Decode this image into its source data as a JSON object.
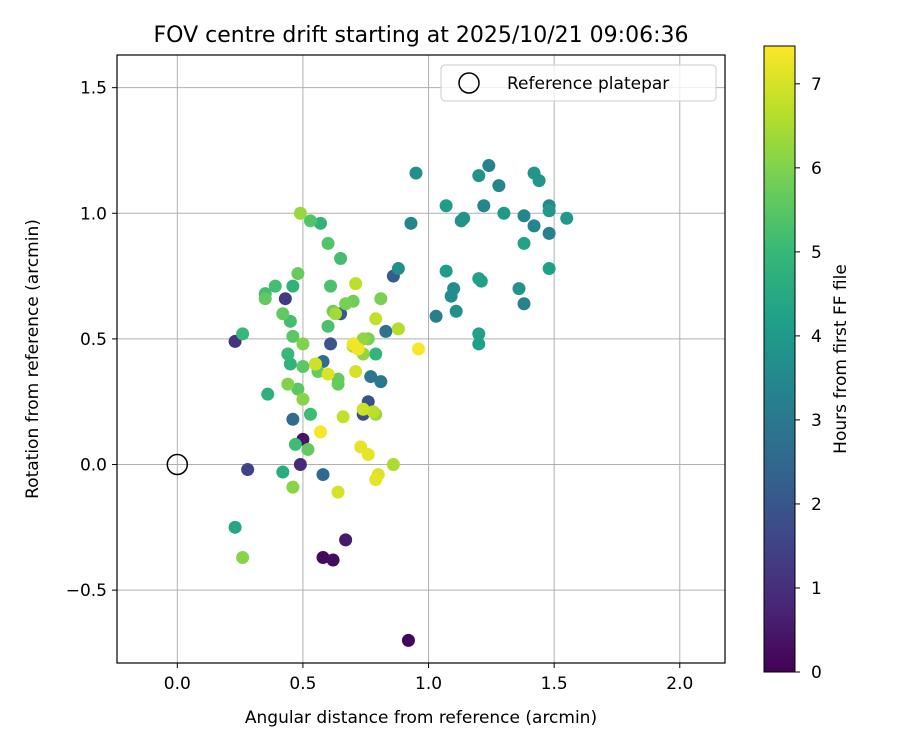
{
  "chart_data": {
    "type": "scatter",
    "title": "FOV centre drift starting at 2025/10/21 09:06:36",
    "xlabel": "Angular distance from reference (arcmin)",
    "ylabel": "Rotation from reference (arcmin)",
    "xlim": [
      -0.24,
      2.18
    ],
    "ylim": [
      -0.79,
      1.63
    ],
    "xticks": [
      0.0,
      0.5,
      1.0,
      1.5,
      2.0
    ],
    "xtick_labels": [
      "0.0",
      "0.5",
      "1.0",
      "1.5",
      "2.0"
    ],
    "yticks": [
      -0.5,
      0.0,
      0.5,
      1.0,
      1.5
    ],
    "ytick_labels": [
      "−0.5",
      "0.0",
      "0.5",
      "1.0",
      "1.5"
    ],
    "grid": true,
    "legend": {
      "position": "top-right",
      "label": "Reference platepar"
    },
    "reference_point": {
      "x": 0.0,
      "y": 0.0
    },
    "colorbar": {
      "label": "Hours from first FF file",
      "colormap": "viridis",
      "range": [
        0,
        7.45
      ],
      "ticks": [
        0,
        1,
        2,
        3,
        4,
        5,
        6,
        7
      ],
      "tick_labels": [
        "0",
        "1",
        "2",
        "3",
        "4",
        "5",
        "6",
        "7"
      ]
    },
    "points": [
      {
        "x": 0.92,
        "y": -0.7,
        "h": 0.1
      },
      {
        "x": 0.58,
        "y": -0.37,
        "h": 0.2
      },
      {
        "x": 0.62,
        "y": -0.38,
        "h": 0.25
      },
      {
        "x": 0.67,
        "y": -0.3,
        "h": 0.5
      },
      {
        "x": 0.5,
        "y": 0.1,
        "h": 0.4
      },
      {
        "x": 0.49,
        "y": 0.0,
        "h": 0.9
      },
      {
        "x": 0.23,
        "y": 0.49,
        "h": 1.1
      },
      {
        "x": 0.43,
        "y": 0.66,
        "h": 1.3
      },
      {
        "x": 0.28,
        "y": -0.02,
        "h": 1.5
      },
      {
        "x": 0.74,
        "y": 0.2,
        "h": 1.8
      },
      {
        "x": 0.76,
        "y": 0.25,
        "h": 1.9
      },
      {
        "x": 0.61,
        "y": 0.48,
        "h": 2.0
      },
      {
        "x": 0.65,
        "y": 0.6,
        "h": 2.1
      },
      {
        "x": 0.86,
        "y": 0.75,
        "h": 2.2
      },
      {
        "x": 0.58,
        "y": -0.04,
        "h": 2.5
      },
      {
        "x": 0.46,
        "y": 0.18,
        "h": 2.6
      },
      {
        "x": 0.58,
        "y": 0.41,
        "h": 2.6
      },
      {
        "x": 0.83,
        "y": 0.53,
        "h": 2.8
      },
      {
        "x": 0.77,
        "y": 0.35,
        "h": 2.9
      },
      {
        "x": 0.81,
        "y": 0.33,
        "h": 3.0
      },
      {
        "x": 1.03,
        "y": 0.59,
        "h": 3.2
      },
      {
        "x": 1.24,
        "y": 1.19,
        "h": 3.3
      },
      {
        "x": 1.38,
        "y": 0.99,
        "h": 3.4
      },
      {
        "x": 1.42,
        "y": 0.95,
        "h": 3.4
      },
      {
        "x": 1.48,
        "y": 0.92,
        "h": 3.3
      },
      {
        "x": 1.38,
        "y": 0.64,
        "h": 3.3
      },
      {
        "x": 0.93,
        "y": 0.96,
        "h": 3.4
      },
      {
        "x": 1.22,
        "y": 1.03,
        "h": 3.4
      },
      {
        "x": 1.28,
        "y": 1.11,
        "h": 3.4
      },
      {
        "x": 1.48,
        "y": 1.03,
        "h": 3.5
      },
      {
        "x": 0.95,
        "y": 1.16,
        "h": 3.7
      },
      {
        "x": 0.88,
        "y": 0.78,
        "h": 3.7
      },
      {
        "x": 1.1,
        "y": 0.7,
        "h": 3.6
      },
      {
        "x": 1.09,
        "y": 0.67,
        "h": 3.6
      },
      {
        "x": 1.11,
        "y": 0.61,
        "h": 3.7
      },
      {
        "x": 1.13,
        "y": 0.97,
        "h": 3.8
      },
      {
        "x": 1.14,
        "y": 0.98,
        "h": 3.8
      },
      {
        "x": 1.2,
        "y": 1.15,
        "h": 3.8
      },
      {
        "x": 1.42,
        "y": 1.16,
        "h": 3.9
      },
      {
        "x": 1.44,
        "y": 1.13,
        "h": 3.9
      },
      {
        "x": 1.36,
        "y": 0.7,
        "h": 3.8
      },
      {
        "x": 1.48,
        "y": 1.01,
        "h": 4.0
      },
      {
        "x": 1.55,
        "y": 0.98,
        "h": 4.0
      },
      {
        "x": 1.3,
        "y": 1.0,
        "h": 4.0
      },
      {
        "x": 1.07,
        "y": 1.03,
        "h": 4.1
      },
      {
        "x": 1.07,
        "y": 0.77,
        "h": 4.1
      },
      {
        "x": 1.21,
        "y": 0.73,
        "h": 4.2
      },
      {
        "x": 1.2,
        "y": 0.74,
        "h": 4.2
      },
      {
        "x": 1.2,
        "y": 0.52,
        "h": 4.2
      },
      {
        "x": 1.2,
        "y": 0.48,
        "h": 4.2
      },
      {
        "x": 1.38,
        "y": 0.88,
        "h": 4.3
      },
      {
        "x": 1.48,
        "y": 0.78,
        "h": 4.2
      },
      {
        "x": 0.23,
        "y": -0.25,
        "h": 4.4
      },
      {
        "x": 0.42,
        "y": -0.03,
        "h": 4.6
      },
      {
        "x": 0.36,
        "y": 0.28,
        "h": 4.7
      },
      {
        "x": 0.57,
        "y": 0.96,
        "h": 4.8
      },
      {
        "x": 0.45,
        "y": 0.4,
        "h": 4.8
      },
      {
        "x": 0.46,
        "y": 0.71,
        "h": 4.8
      },
      {
        "x": 0.79,
        "y": 0.44,
        "h": 4.9
      },
      {
        "x": 0.26,
        "y": 0.52,
        "h": 5.0
      },
      {
        "x": 0.44,
        "y": 0.44,
        "h": 5.0
      },
      {
        "x": 0.47,
        "y": 0.08,
        "h": 5.1
      },
      {
        "x": 0.53,
        "y": 0.2,
        "h": 5.1
      },
      {
        "x": 0.39,
        "y": 0.71,
        "h": 5.2
      },
      {
        "x": 0.35,
        "y": 0.68,
        "h": 5.2
      },
      {
        "x": 0.45,
        "y": 0.57,
        "h": 5.2
      },
      {
        "x": 0.65,
        "y": 0.82,
        "h": 5.2
      },
      {
        "x": 0.61,
        "y": 0.71,
        "h": 5.3
      },
      {
        "x": 0.6,
        "y": 0.55,
        "h": 5.3
      },
      {
        "x": 0.53,
        "y": 0.97,
        "h": 5.4
      },
      {
        "x": 0.6,
        "y": 0.88,
        "h": 5.4
      },
      {
        "x": 0.48,
        "y": 0.3,
        "h": 5.5
      },
      {
        "x": 0.46,
        "y": 0.51,
        "h": 5.5
      },
      {
        "x": 0.5,
        "y": 0.39,
        "h": 5.5
      },
      {
        "x": 0.52,
        "y": 0.06,
        "h": 5.6
      },
      {
        "x": 0.42,
        "y": 0.6,
        "h": 5.6
      },
      {
        "x": 0.35,
        "y": 0.66,
        "h": 5.6
      },
      {
        "x": 0.48,
        "y": 0.76,
        "h": 5.7
      },
      {
        "x": 0.56,
        "y": 0.37,
        "h": 5.7
      },
      {
        "x": 0.64,
        "y": 0.34,
        "h": 5.7
      },
      {
        "x": 0.64,
        "y": 0.32,
        "h": 5.7
      },
      {
        "x": 0.7,
        "y": 0.65,
        "h": 5.8
      },
      {
        "x": 0.62,
        "y": 0.61,
        "h": 5.8
      },
      {
        "x": 0.67,
        "y": 0.64,
        "h": 5.9
      },
      {
        "x": 0.76,
        "y": 0.5,
        "h": 5.9
      },
      {
        "x": 0.81,
        "y": 0.66,
        "h": 5.9
      },
      {
        "x": 0.5,
        "y": 0.48,
        "h": 6.0
      },
      {
        "x": 0.44,
        "y": 0.32,
        "h": 6.0
      },
      {
        "x": 0.5,
        "y": 0.26,
        "h": 6.1
      },
      {
        "x": 0.26,
        "y": -0.37,
        "h": 6.1
      },
      {
        "x": 0.46,
        "y": -0.09,
        "h": 6.1
      },
      {
        "x": 0.74,
        "y": 0.5,
        "h": 6.2
      },
      {
        "x": 0.74,
        "y": 0.44,
        "h": 6.2
      },
      {
        "x": 0.79,
        "y": 0.2,
        "h": 6.3
      },
      {
        "x": 0.49,
        "y": 1.0,
        "h": 6.3
      },
      {
        "x": 0.63,
        "y": 0.6,
        "h": 6.4
      },
      {
        "x": 0.55,
        "y": 0.4,
        "h": 6.5
      },
      {
        "x": 0.86,
        "y": 0.0,
        "h": 6.5
      },
      {
        "x": 0.88,
        "y": 0.54,
        "h": 6.6
      },
      {
        "x": 0.7,
        "y": 0.47,
        "h": 6.6
      },
      {
        "x": 0.78,
        "y": 0.21,
        "h": 6.7
      },
      {
        "x": 0.71,
        "y": 0.72,
        "h": 6.7
      },
      {
        "x": 0.79,
        "y": 0.58,
        "h": 6.8
      },
      {
        "x": 0.66,
        "y": 0.19,
        "h": 6.8
      },
      {
        "x": 0.55,
        "y": 0.4,
        "h": 6.9
      },
      {
        "x": 0.74,
        "y": 0.22,
        "h": 6.9
      },
      {
        "x": 0.71,
        "y": 0.37,
        "h": 7.0
      },
      {
        "x": 0.64,
        "y": -0.11,
        "h": 7.0
      },
      {
        "x": 0.6,
        "y": 0.36,
        "h": 7.1
      },
      {
        "x": 0.8,
        "y": -0.04,
        "h": 7.1
      },
      {
        "x": 0.79,
        "y": -0.06,
        "h": 7.2
      },
      {
        "x": 0.76,
        "y": 0.04,
        "h": 7.2
      },
      {
        "x": 0.73,
        "y": 0.07,
        "h": 7.2
      },
      {
        "x": 0.7,
        "y": 0.48,
        "h": 7.3
      },
      {
        "x": 0.72,
        "y": 0.46,
        "h": 7.3
      },
      {
        "x": 0.96,
        "y": 0.46,
        "h": 7.4
      },
      {
        "x": 0.57,
        "y": 0.13,
        "h": 7.4
      }
    ]
  }
}
